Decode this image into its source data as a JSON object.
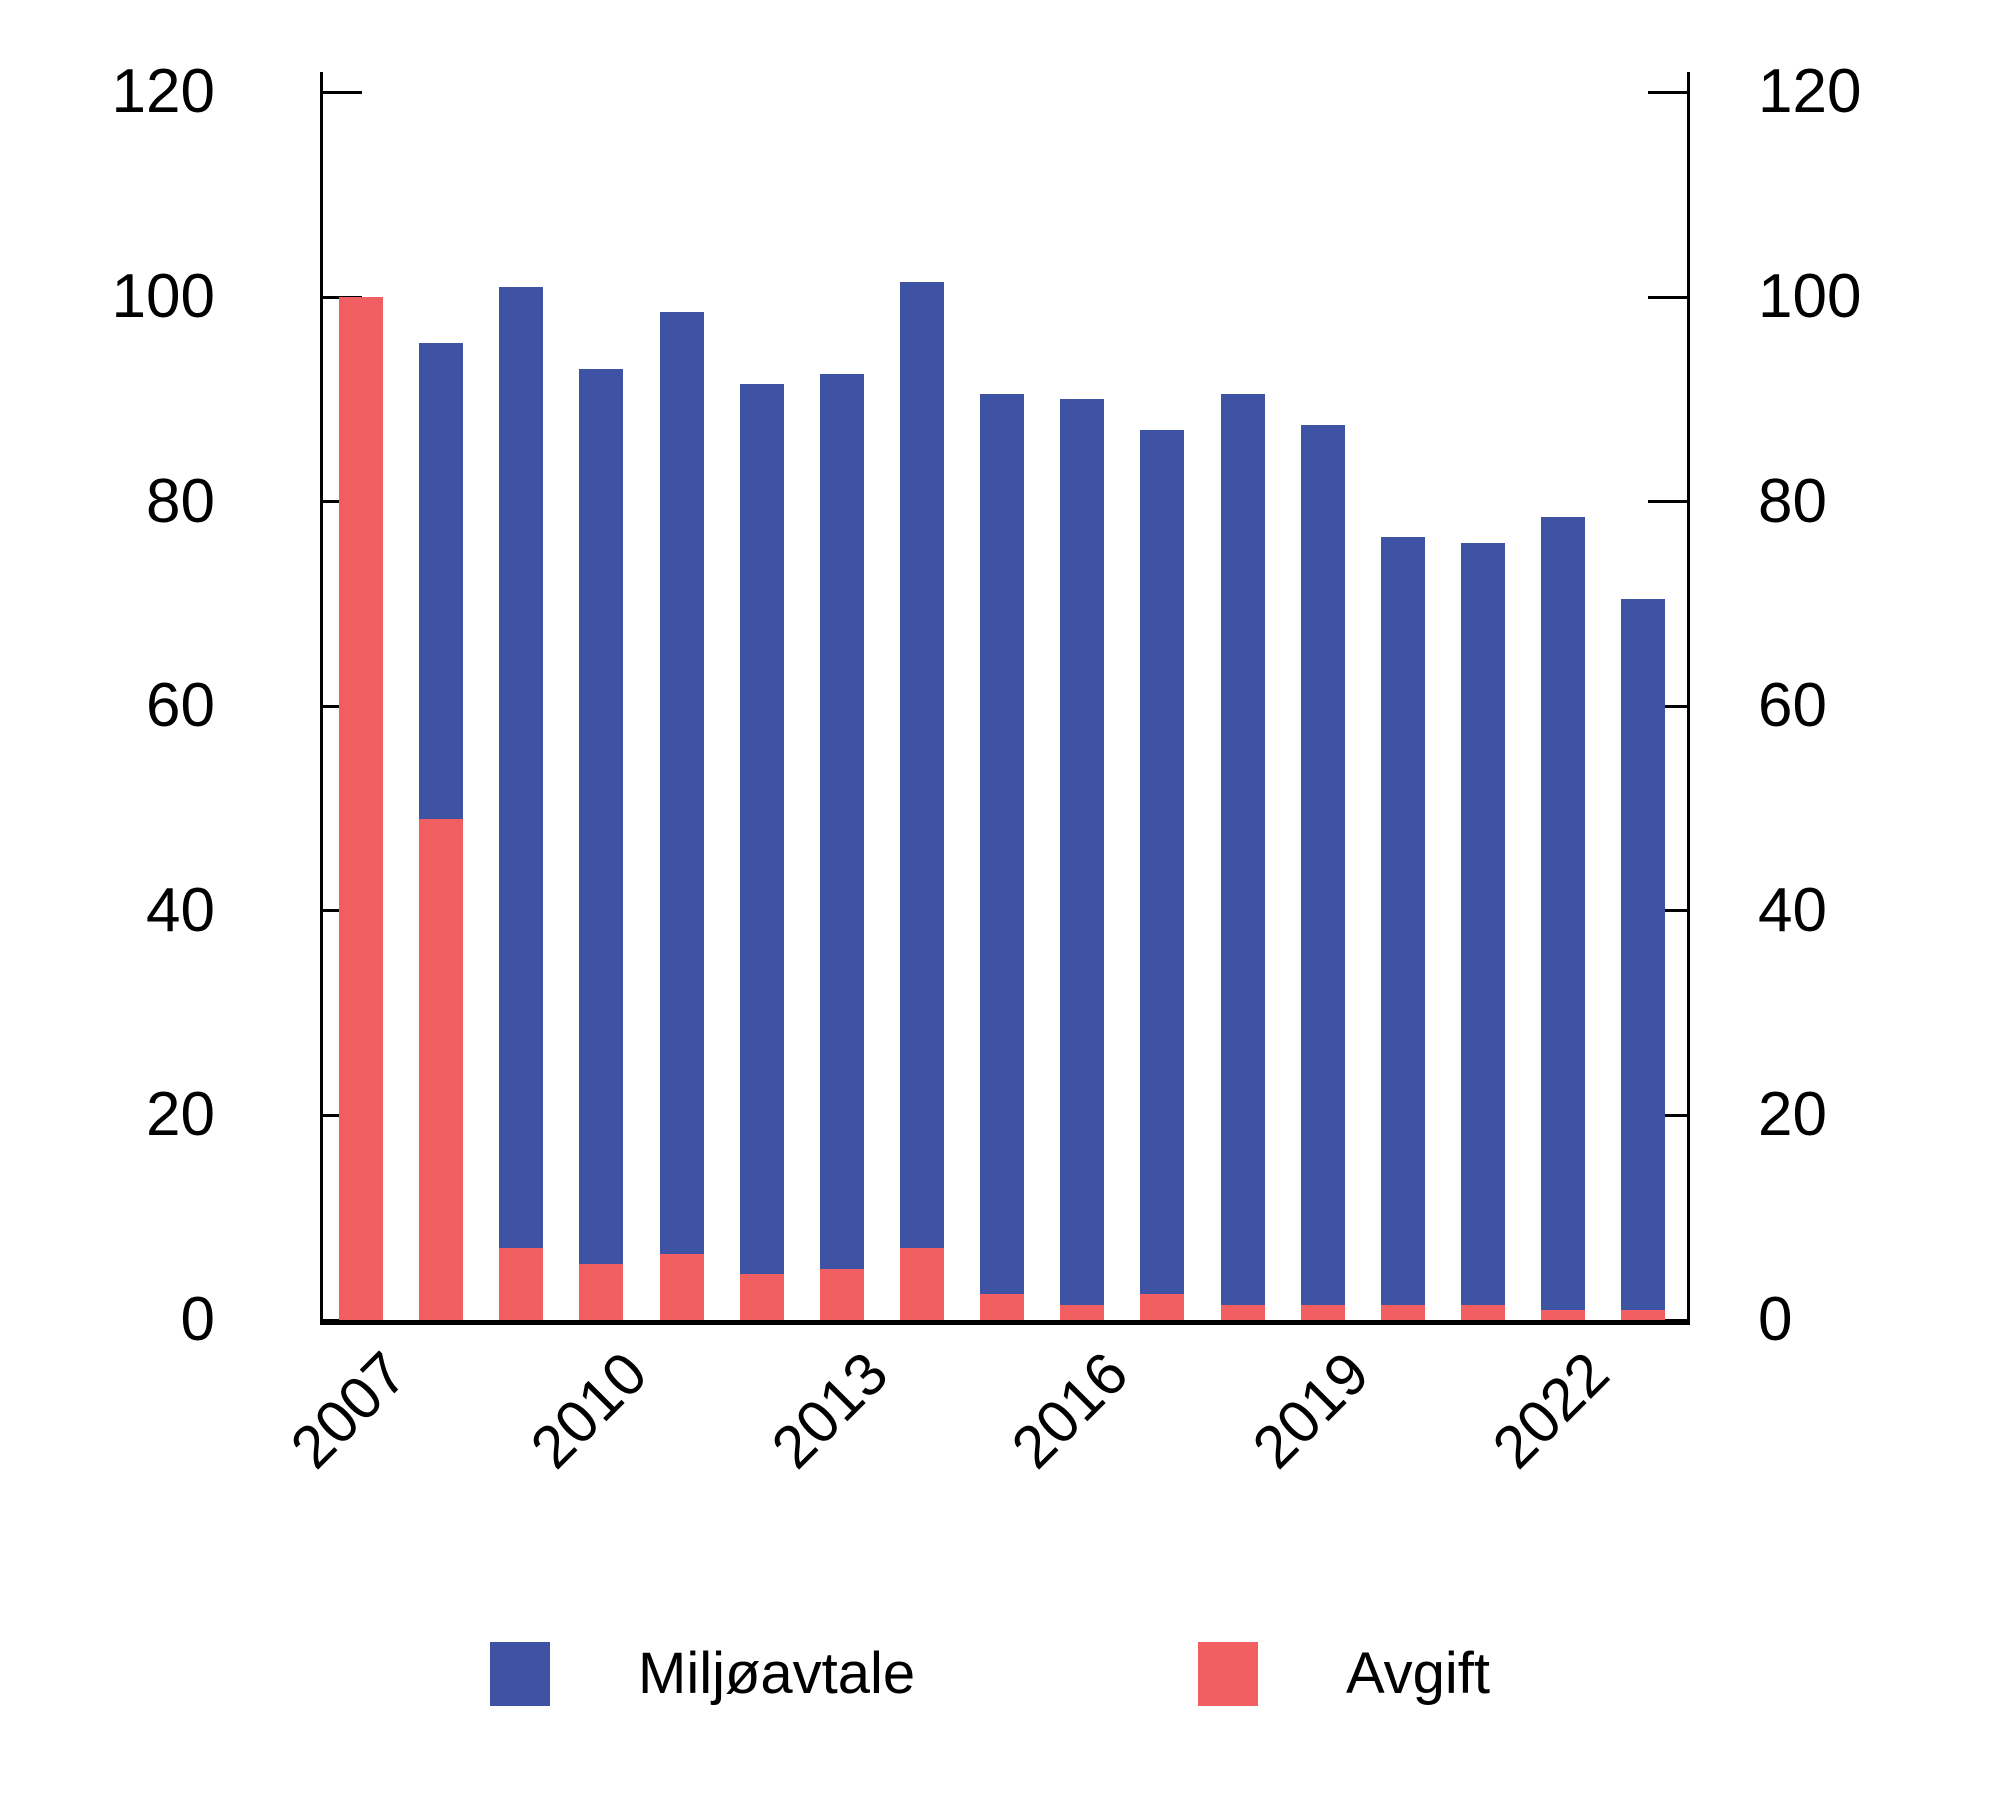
{
  "chart_data": {
    "type": "bar",
    "stacked": true,
    "title": "",
    "categories": [
      "2007",
      "2008",
      "2009",
      "2010",
      "2011",
      "2012",
      "2013",
      "2014",
      "2015",
      "2016",
      "2017",
      "2018",
      "2019",
      "2020",
      "2021",
      "2022",
      "2023"
    ],
    "series": [
      {
        "name": "Avgift",
        "color": "#F25F63",
        "values": [
          100,
          49,
          7,
          5.5,
          6.5,
          4.5,
          5,
          7,
          2.5,
          1.5,
          2.5,
          1.5,
          1.5,
          1.5,
          1.5,
          1,
          1
        ]
      },
      {
        "name": "Miljøavtale",
        "color": "#3E53A3",
        "values": [
          0,
          46.5,
          94,
          87.5,
          92,
          87,
          87.5,
          94.5,
          88,
          88.5,
          84.5,
          89,
          86,
          75,
          74.5,
          77.5,
          69.5
        ]
      }
    ],
    "stack_totals": [
      100,
      95.5,
      101,
      93,
      98.5,
      91.5,
      92.5,
      101.5,
      90.5,
      90,
      87,
      90.5,
      87.5,
      76.5,
      76,
      78.5,
      70.5
    ],
    "ylim": [
      0,
      122
    ],
    "yticks": [
      "0",
      "20",
      "40",
      "60",
      "80",
      "100",
      "120"
    ],
    "ytick_values": [
      0,
      20,
      40,
      60,
      80,
      100,
      120
    ],
    "y_axis_sides": "both",
    "xtick_labels": [
      "2007",
      "2010",
      "2013",
      "2016",
      "2019",
      "2022"
    ],
    "xtick_category_index": [
      0,
      3,
      6,
      9,
      12,
      15
    ],
    "grid": false,
    "legend": {
      "position": "bottom",
      "items": [
        {
          "label": "Miljøavtale",
          "color": "#3E53A3"
        },
        {
          "label": "Avgift",
          "color": "#F25F63"
        }
      ]
    }
  }
}
